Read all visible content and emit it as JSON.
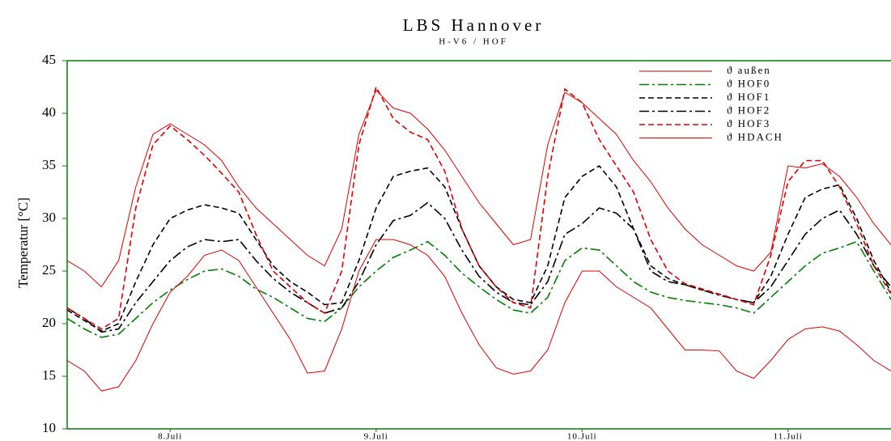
{
  "chart_data": {
    "type": "line",
    "title": "LBS Hannover",
    "subtitle": "H-V6 / HOF",
    "y_label": "Temperatur [°C]",
    "x": [
      0,
      2,
      4,
      6,
      8,
      10,
      12,
      14,
      16,
      18,
      20,
      22,
      24,
      26,
      28,
      30,
      32,
      34,
      36,
      38,
      40,
      42,
      44,
      46,
      48,
      50,
      52,
      54,
      56,
      58,
      60,
      62,
      64,
      66,
      68,
      70,
      72,
      74,
      76,
      78,
      80,
      82,
      84,
      86,
      88,
      90,
      92,
      94,
      96
    ],
    "xlim": [
      0,
      96
    ],
    "xticks": [
      {
        "value": 12,
        "label": "8.Juli"
      },
      {
        "value": 36,
        "label": "9.Juli"
      },
      {
        "value": 60,
        "label": "10.Juli"
      },
      {
        "value": 84,
        "label": "11.Juli"
      }
    ],
    "ylim": [
      10,
      45
    ],
    "yticks": [
      10,
      15,
      20,
      25,
      30,
      35,
      40,
      45
    ],
    "legend": "top-right",
    "series": [
      {
        "name": "ϑ außen",
        "color": "#e00000",
        "dash": "solid",
        "values": [
          26,
          25,
          23.5,
          26,
          33,
          38,
          39,
          38,
          37,
          35.5,
          33,
          31,
          29.5,
          28,
          26.5,
          25.5,
          29,
          38,
          42.2,
          40.5,
          40,
          38.5,
          36.5,
          34,
          31.5,
          29.5,
          27.5,
          28,
          37,
          42,
          41,
          39.5,
          38,
          35.5,
          33.5,
          31,
          29,
          27.5,
          26.5,
          25.5,
          25,
          26.8,
          35,
          34.8,
          35.2,
          34,
          32,
          29.5,
          27.5
        ]
      },
      {
        "name": "ϑ HOF0",
        "color": "#008000",
        "dash": "dashdot",
        "values": [
          20.5,
          19.5,
          18.7,
          19,
          20.5,
          22,
          23.2,
          24.2,
          25,
          25.2,
          24.5,
          23.3,
          22.5,
          21.5,
          20.5,
          20.2,
          21.5,
          23.5,
          25,
          26.3,
          27,
          27.8,
          26.5,
          24.8,
          23.5,
          22.3,
          21.3,
          21,
          22.5,
          26,
          27.2,
          27,
          25.5,
          24,
          23,
          22.5,
          22.2,
          22,
          21.8,
          21.5,
          21,
          22.5,
          24,
          25.5,
          26.7,
          27.2,
          27.8,
          25,
          22.3
        ]
      },
      {
        "name": "ϑ HOF1",
        "color": "#000000",
        "dash": "dashed",
        "values": [
          21.3,
          20.3,
          19.3,
          20,
          24,
          27.5,
          30,
          30.8,
          31.3,
          31,
          30.5,
          28,
          25.5,
          24,
          23,
          21.8,
          22,
          26,
          31,
          34,
          34.5,
          34.8,
          33,
          29,
          25.5,
          23.5,
          22.3,
          22,
          25.5,
          32,
          34,
          35,
          33,
          29,
          25.5,
          24.3,
          23.7,
          23.2,
          22.8,
          22.3,
          22,
          24.5,
          28.5,
          32,
          32.8,
          33.2,
          30,
          26,
          23
        ]
      },
      {
        "name": "ϑ HOF2",
        "color": "#000000",
        "dash": "dashdot",
        "values": [
          21.5,
          20.5,
          19.2,
          19.5,
          22,
          24,
          26,
          27.3,
          28,
          27.8,
          28,
          26,
          24.3,
          23,
          22,
          21,
          21.5,
          24,
          27.5,
          29.8,
          30.3,
          31.5,
          30,
          27,
          24.5,
          23,
          22,
          21.8,
          24,
          28.5,
          29.5,
          31,
          30.5,
          29,
          25,
          24,
          23.7,
          23.2,
          22.7,
          22.3,
          22,
          23.5,
          26,
          28.5,
          30,
          30.8,
          28.5,
          25.5,
          23.5
        ]
      },
      {
        "name": "ϑ HOF3",
        "color": "#e00000",
        "dash": "dashed",
        "values": [
          21.5,
          20.5,
          19.5,
          20.5,
          31,
          37,
          38.8,
          37.5,
          36,
          34.3,
          32.5,
          28.5,
          25,
          23.5,
          22,
          21,
          25,
          37,
          42.5,
          39.5,
          38.2,
          37.5,
          34.5,
          29,
          25.5,
          23.5,
          22,
          21.5,
          34,
          42.3,
          41,
          37.5,
          35,
          32.5,
          28,
          25,
          23.8,
          23.3,
          22.8,
          22.3,
          21.8,
          26.5,
          33.5,
          35.5,
          35.5,
          33,
          29.5,
          25.5,
          22.8
        ]
      },
      {
        "name": "ϑ HDACH",
        "color": "#e00000",
        "dash": "solid",
        "values": [
          16.5,
          15.5,
          13.6,
          14,
          16.5,
          20,
          23,
          24.5,
          26.5,
          27,
          26,
          23.5,
          21,
          18.5,
          15.3,
          15.5,
          19.5,
          25,
          28,
          28,
          27.5,
          26.5,
          24.5,
          21,
          18,
          15.8,
          15.2,
          15.5,
          17.5,
          22,
          25,
          25,
          23.5,
          22.5,
          21.5,
          19.5,
          17.5,
          17.5,
          17.4,
          15.5,
          14.8,
          16.5,
          18.5,
          19.5,
          19.7,
          19.3,
          18,
          16.5,
          15.5
        ]
      }
    ]
  }
}
